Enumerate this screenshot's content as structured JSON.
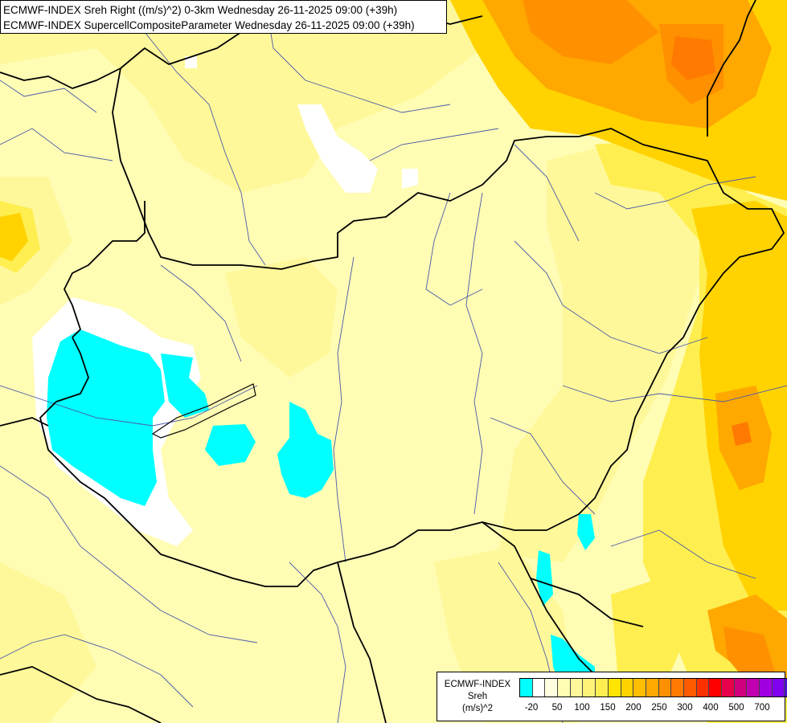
{
  "header": {
    "line1": "ECMWF-INDEX Sreh Right ((m/s)^2) 0-3km Wednesday 26-11-2025 09:00 (+39h)",
    "line2": "ECMWF-INDEX SupercellCompositeParameter Wednesday 26-11-2025 09:00 (+39h)"
  },
  "legend": {
    "line1": "ECMWF-INDEX",
    "line2": "Sreh",
    "line3": "(m/s)^2",
    "colors": [
      "#00ffff",
      "#ffffff",
      "#ffffe0",
      "#fffcb4",
      "#fff89a",
      "#fff278",
      "#ffee50",
      "#ffe400",
      "#ffd200",
      "#ffbe00",
      "#ffa800",
      "#ff9000",
      "#ff7a00",
      "#ff5a00",
      "#ff3000",
      "#ff0000",
      "#e8004a",
      "#d0007c",
      "#c000b0",
      "#a000e0",
      "#8000f0",
      "#5010d0",
      "#2818a8",
      "#000080"
    ],
    "ticks": [
      "-20",
      "50",
      "100",
      "150",
      "200",
      "250",
      "300",
      "400",
      "500",
      "700"
    ]
  }
}
